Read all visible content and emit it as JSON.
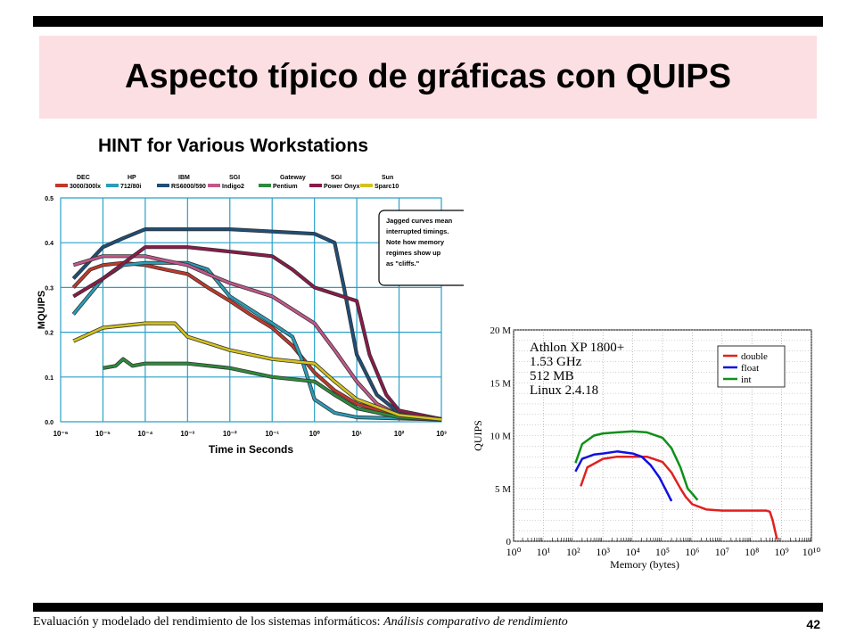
{
  "slide": {
    "title": "Aspecto típico de gráficas con QUIPS",
    "footer_main": "Evaluación y modelado del rendimiento de los sistemas informáticos:",
    "footer_italic": "Análisis comparativo de rendimiento",
    "page_number": "42"
  },
  "chart_data": [
    {
      "type": "line",
      "title": "HINT for Various Workstations",
      "xlabel": "Time in Seconds",
      "ylabel": "MQUIPS",
      "x_scale": "log",
      "xlim": [
        1e-06,
        1000
      ],
      "ylim": [
        0,
        0.5
      ],
      "x_ticks": [
        "10⁻⁶",
        "10⁻⁵",
        "10⁻⁴",
        "10⁻³",
        "10⁻²",
        "10⁻¹",
        "10⁰",
        "10¹",
        "10²",
        "10³"
      ],
      "y_ticks": [
        "0.0",
        "0.1",
        "0.2",
        "0.3",
        "0.4",
        "0.5"
      ],
      "grid": true,
      "legend_position": "top",
      "annotation": [
        "Jagged curves mean",
        "interrupted timings.",
        "Note how memory",
        "regimes show up",
        "as \"cliffs.\""
      ],
      "series": [
        {
          "vendor": "DEC",
          "model": "3000/300lx",
          "color": "#c0392b",
          "points": [
            [
              2e-06,
              0.3
            ],
            [
              5e-06,
              0.34
            ],
            [
              1e-05,
              0.35
            ],
            [
              3e-05,
              0.355
            ],
            [
              0.0001,
              0.35
            ],
            [
              0.0003,
              0.34
            ],
            [
              0.001,
              0.33
            ],
            [
              0.003,
              0.3
            ],
            [
              0.01,
              0.27
            ],
            [
              0.03,
              0.24
            ],
            [
              0.1,
              0.21
            ],
            [
              0.3,
              0.17
            ],
            [
              1,
              0.11
            ],
            [
              3,
              0.07
            ],
            [
              10,
              0.04
            ],
            [
              100,
              0.012
            ],
            [
              1000,
              0.005
            ]
          ]
        },
        {
          "vendor": "HP",
          "model": "712/80i",
          "color": "#2a9db8",
          "points": [
            [
              2e-06,
              0.24
            ],
            [
              1e-05,
              0.32
            ],
            [
              3e-05,
              0.35
            ],
            [
              0.0001,
              0.355
            ],
            [
              0.001,
              0.355
            ],
            [
              0.003,
              0.34
            ],
            [
              0.01,
              0.28
            ],
            [
              0.1,
              0.22
            ],
            [
              0.3,
              0.19
            ],
            [
              0.5,
              0.14
            ],
            [
              1,
              0.05
            ],
            [
              3,
              0.02
            ],
            [
              10,
              0.01
            ],
            [
              1000,
              0.005
            ]
          ]
        },
        {
          "vendor": "IBM",
          "model": "RS6000/590",
          "color": "#1f4e79",
          "points": [
            [
              2e-06,
              0.32
            ],
            [
              1e-05,
              0.39
            ],
            [
              3e-05,
              0.41
            ],
            [
              0.0001,
              0.43
            ],
            [
              0.001,
              0.43
            ],
            [
              0.01,
              0.43
            ],
            [
              1,
              0.42
            ],
            [
              3,
              0.4
            ],
            [
              5,
              0.3
            ],
            [
              10,
              0.15
            ],
            [
              30,
              0.06
            ],
            [
              100,
              0.02
            ],
            [
              1000,
              0.006
            ]
          ]
        },
        {
          "vendor": "SGI",
          "model": "Indigo2",
          "color": "#c2578a",
          "points": [
            [
              2e-06,
              0.35
            ],
            [
              1e-05,
              0.37
            ],
            [
              0.0001,
              0.37
            ],
            [
              0.0003,
              0.36
            ],
            [
              0.001,
              0.35
            ],
            [
              0.003,
              0.33
            ],
            [
              0.01,
              0.31
            ],
            [
              0.1,
              0.28
            ],
            [
              1,
              0.22
            ],
            [
              3,
              0.16
            ],
            [
              10,
              0.09
            ],
            [
              30,
              0.04
            ],
            [
              100,
              0.015
            ],
            [
              1000,
              0.005
            ]
          ]
        },
        {
          "vendor": "Gateway",
          "model": "Pentium",
          "color": "#2e8b3c",
          "points": [
            [
              1e-05,
              0.12
            ],
            [
              2e-05,
              0.125
            ],
            [
              3e-05,
              0.14
            ],
            [
              5e-05,
              0.125
            ],
            [
              0.0001,
              0.13
            ],
            [
              0.001,
              0.13
            ],
            [
              0.01,
              0.12
            ],
            [
              0.1,
              0.1
            ],
            [
              1,
              0.09
            ],
            [
              3,
              0.06
            ],
            [
              10,
              0.03
            ],
            [
              100,
              0.01
            ],
            [
              1000,
              0.004
            ]
          ]
        },
        {
          "vendor": "SGI",
          "model": "Power Onyx",
          "color": "#8b1a4a",
          "points": [
            [
              2e-06,
              0.28
            ],
            [
              1e-05,
              0.32
            ],
            [
              0.0001,
              0.39
            ],
            [
              0.001,
              0.39
            ],
            [
              0.01,
              0.38
            ],
            [
              0.1,
              0.37
            ],
            [
              0.3,
              0.34
            ],
            [
              1,
              0.3
            ],
            [
              10,
              0.27
            ],
            [
              20,
              0.15
            ],
            [
              50,
              0.06
            ],
            [
              100,
              0.025
            ],
            [
              1000,
              0.006
            ]
          ]
        },
        {
          "vendor": "Sun",
          "model": "Sparc10",
          "color": "#d4c21e",
          "points": [
            [
              2e-06,
              0.18
            ],
            [
              1e-05,
              0.21
            ],
            [
              0.0001,
              0.22
            ],
            [
              0.0005,
              0.22
            ],
            [
              0.001,
              0.19
            ],
            [
              0.01,
              0.16
            ],
            [
              0.1,
              0.14
            ],
            [
              1,
              0.13
            ],
            [
              3,
              0.09
            ],
            [
              10,
              0.05
            ],
            [
              100,
              0.015
            ],
            [
              1000,
              0.005
            ]
          ]
        }
      ]
    },
    {
      "type": "line",
      "title": "",
      "annotation": [
        "Athlon XP 1800+",
        "1.53 GHz",
        "512 MB",
        "Linux 2.4.18"
      ],
      "xlabel": "Memory (bytes)",
      "ylabel": "QUIPS",
      "x_scale": "log",
      "xlim": [
        1,
        10000000000.0
      ],
      "ylim": [
        0,
        20000000
      ],
      "x_ticks": [
        "10⁰",
        "10¹",
        "10²",
        "10³",
        "10⁴",
        "10⁵",
        "10⁶",
        "10⁷",
        "10⁸",
        "10⁹",
        "10¹⁰"
      ],
      "y_ticks": [
        "0",
        "5 M",
        "10 M",
        "15 M",
        "20 M"
      ],
      "grid": true,
      "legend_position": "top-right",
      "series": [
        {
          "name": "double",
          "color": "#e02020",
          "points": [
            [
              180,
              5200000.0
            ],
            [
              300,
              7000000.0
            ],
            [
              1000,
              7800000.0
            ],
            [
              3000,
              8000000.0
            ],
            [
              10000.0,
              8000000.0
            ],
            [
              30000.0,
              8000000.0
            ],
            [
              100000.0,
              7500000.0
            ],
            [
              200000.0,
              6500000.0
            ],
            [
              400000.0,
              5000000.0
            ],
            [
              600000.0,
              4200000.0
            ],
            [
              1000000.0,
              3500000.0
            ],
            [
              3000000.0,
              3000000.0
            ],
            [
              10000000.0,
              2900000.0
            ],
            [
              30000000.0,
              2900000.0
            ],
            [
              100000000.0,
              2900000.0
            ],
            [
              300000000.0,
              2900000.0
            ],
            [
              400000000.0,
              2800000.0
            ],
            [
              500000000.0,
              2000000.0
            ],
            [
              600000000.0,
              1000000.0
            ],
            [
              700000000.0,
              200000.0
            ]
          ]
        },
        {
          "name": "float",
          "color": "#1010e0",
          "points": [
            [
              120,
              6600000.0
            ],
            [
              200,
              7800000.0
            ],
            [
              500,
              8200000.0
            ],
            [
              1000,
              8300000.0
            ],
            [
              3000,
              8500000.0
            ],
            [
              10000.0,
              8300000.0
            ],
            [
              20000.0,
              8000000.0
            ],
            [
              40000.0,
              7200000.0
            ],
            [
              80000.0,
              6000000.0
            ],
            [
              150000.0,
              4500000.0
            ],
            [
              200000.0,
              3800000.0
            ]
          ]
        },
        {
          "name": "int",
          "color": "#10901a",
          "points": [
            [
              120,
              7400000.0
            ],
            [
              200,
              9200000.0
            ],
            [
              500,
              10000000.0
            ],
            [
              1000,
              10200000.0
            ],
            [
              3000,
              10300000.0
            ],
            [
              10000.0,
              10400000.0
            ],
            [
              30000.0,
              10300000.0
            ],
            [
              100000.0,
              9800000.0
            ],
            [
              200000.0,
              8800000.0
            ],
            [
              400000.0,
              7000000.0
            ],
            [
              700000.0,
              5000000.0
            ],
            [
              1000000.0,
              4500000.0
            ],
            [
              1500000.0,
              3900000.0
            ]
          ]
        }
      ]
    }
  ]
}
